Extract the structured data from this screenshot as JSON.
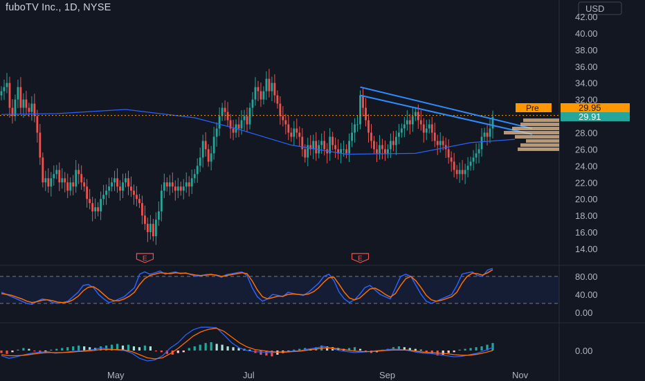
{
  "header": {
    "symbol": "fuboTV Inc.",
    "interval": "1D",
    "exchange": "NYSE",
    "currency": "USD"
  },
  "colors": {
    "background": "#131722",
    "up": "#26a69a",
    "down": "#ef5350",
    "ma": "#2962ff",
    "trendline": "#2f8cff",
    "stoch_k": "#2962ff",
    "stoch_d": "#ff6d00",
    "pre_badge": "#ff9800",
    "last_badge": "#26a69a",
    "volume_profile": "#f2c48d"
  },
  "price_badges": {
    "pre_label": "Pre",
    "pre_value": "29.95",
    "last_value": "29.91"
  },
  "earnings_marker": "E",
  "chart_data": [
    {
      "type": "candlestick",
      "title": "fuboTV Inc., 1D, NYSE",
      "y_ticks": [
        "14.00",
        "16.00",
        "18.00",
        "20.00",
        "22.00",
        "24.00",
        "26.00",
        "28.00",
        "30.00",
        "32.00",
        "34.00",
        "36.00",
        "38.00",
        "40.00",
        "42.00"
      ],
      "x_ticks": [
        "May",
        "Jul",
        "Sep",
        "Nov"
      ],
      "ylim": [
        13,
        43
      ],
      "last_price": 29.91,
      "pre_market_price": 29.95,
      "grid": false,
      "close_series": [
        33,
        33.5,
        34,
        31,
        30,
        32,
        33.5,
        31,
        32,
        31,
        30.5,
        31.5,
        30,
        28,
        25,
        22,
        22.5,
        21.5,
        22.5,
        23,
        23.5,
        22,
        22.5,
        22,
        21,
        22,
        21.5,
        23.5,
        23,
        22,
        21.5,
        20,
        19.5,
        18.5,
        19,
        18.5,
        20,
        20.5,
        21,
        21.5,
        22,
        22.5,
        21.5,
        21,
        22,
        22.5,
        21.5,
        21,
        20.5,
        20,
        19.5,
        18,
        17,
        16,
        17,
        15.5,
        17.5,
        18.5,
        21,
        22,
        21.5,
        22,
        21.5,
        21,
        21.5,
        21,
        21.5,
        22,
        21.5,
        22.5,
        23,
        24,
        25,
        27,
        26,
        24.5,
        25.5,
        27.5,
        28.5,
        30,
        31,
        30.5,
        29.5,
        28.5,
        28,
        29,
        28.5,
        29.5,
        30,
        29,
        31,
        32,
        33.5,
        33,
        32,
        33,
        34.5,
        33,
        34,
        32.5,
        31.5,
        30,
        29.5,
        29,
        28,
        27.5,
        28.5,
        28,
        27.5,
        26,
        25,
        26.5,
        26,
        27,
        25.5,
        26.5,
        27,
        26,
        25.5,
        27.5,
        26.5,
        26,
        25.5,
        26,
        26,
        25.5,
        27,
        28,
        29,
        29,
        32.5,
        31,
        29.5,
        28,
        27,
        26,
        25.5,
        26.5,
        26,
        25.5,
        26,
        27,
        26.5,
        27.5,
        28,
        28.5,
        29,
        29.5,
        29,
        30,
        30.5,
        29.5,
        29,
        28,
        28.5,
        29,
        28,
        27,
        26.5,
        27,
        26.5,
        26,
        25,
        24.5,
        23.5,
        23,
        23.5,
        23,
        23.5,
        24,
        24.5,
        25,
        25.5,
        26,
        27.5,
        28,
        27.5,
        28.5,
        29.91
      ],
      "moving_average": [
        {
          "day": 0,
          "value": 30.2
        },
        {
          "day": 20,
          "value": 30.3
        },
        {
          "day": 45,
          "value": 30.8
        },
        {
          "day": 70,
          "value": 29.8
        },
        {
          "day": 85,
          "value": 28.5
        },
        {
          "day": 105,
          "value": 26.5
        },
        {
          "day": 125,
          "value": 25.4
        },
        {
          "day": 150,
          "value": 25.5
        },
        {
          "day": 170,
          "value": 26.8
        },
        {
          "day": 186,
          "value": 27.2
        }
      ],
      "trendlines": [
        {
          "from": {
            "day": 130,
            "value": 33.5
          },
          "to": {
            "day": 186,
            "value": 28.5
          }
        },
        {
          "from": {
            "day": 130,
            "value": 32.5
          },
          "to": {
            "day": 186,
            "value": 27.8
          }
        }
      ],
      "volume_profile": [
        {
          "price": 29.5,
          "volume": 0.65
        },
        {
          "price": 29.0,
          "volume": 0.7
        },
        {
          "price": 28.5,
          "volume": 0.85
        },
        {
          "price": 28.0,
          "volume": 1.0
        },
        {
          "price": 27.5,
          "volume": 0.8
        },
        {
          "price": 27.0,
          "volume": 0.6
        },
        {
          "price": 26.5,
          "volume": 0.7
        },
        {
          "price": 26.0,
          "volume": 0.75
        }
      ],
      "earnings_days": [
        52,
        130
      ]
    },
    {
      "type": "line",
      "indicator": "stochastic",
      "y_ticks": [
        "0.00",
        "40.00",
        "80.00"
      ],
      "bands": [
        20,
        80
      ],
      "series": [
        {
          "values": [
            45,
            40,
            35,
            30,
            25,
            20,
            18,
            25,
            30,
            28,
            22,
            20,
            22,
            25,
            35,
            45,
            60,
            62,
            55,
            40,
            30,
            22,
            25,
            30,
            35,
            45,
            55,
            85,
            90,
            85,
            88,
            92,
            85,
            88,
            90,
            86,
            88,
            84,
            80,
            82,
            84,
            85,
            82,
            78,
            84,
            86,
            88,
            90,
            82,
            55,
            35,
            25,
            30,
            40,
            38,
            35,
            45,
            42,
            40,
            38,
            45,
            55,
            65,
            80,
            85,
            70,
            45,
            30,
            22,
            28,
            40,
            55,
            60,
            50,
            40,
            35,
            30,
            55,
            80,
            85,
            80,
            60,
            40,
            25,
            20,
            25,
            30,
            35,
            40,
            60,
            85,
            88,
            90,
            82,
            80,
            94,
            98
          ]
        },
        {
          "values": [
            42,
            40,
            38,
            34,
            30,
            25,
            22,
            24,
            27,
            28,
            26,
            23,
            22,
            23,
            28,
            36,
            48,
            56,
            57,
            50,
            40,
            30,
            26,
            26,
            30,
            36,
            45,
            62,
            75,
            82,
            85,
            88,
            87,
            86,
            88,
            87,
            87,
            85,
            83,
            82,
            83,
            84,
            83,
            80,
            82,
            84,
            86,
            88,
            86,
            70,
            50,
            35,
            30,
            33,
            36,
            36,
            40,
            41,
            40,
            39,
            41,
            46,
            55,
            67,
            77,
            78,
            62,
            45,
            32,
            28,
            32,
            42,
            52,
            54,
            48,
            40,
            34,
            42,
            60,
            75,
            80,
            70,
            55,
            38,
            28,
            25,
            27,
            31,
            35,
            45,
            65,
            80,
            87,
            86,
            83,
            88,
            95
          ]
        }
      ]
    },
    {
      "type": "bar",
      "indicator": "macd",
      "y_ticks": [
        "0.00"
      ],
      "histogram": [
        -0.3,
        -0.4,
        -0.2,
        0.1,
        0.3,
        0.2,
        -0.1,
        -0.3,
        -0.2,
        0.1,
        0.2,
        0.3,
        0.4,
        0.5,
        0.6,
        0.5,
        0.4,
        0.3,
        0.5,
        0.6,
        0.7,
        0.8,
        0.6,
        0.7,
        0.5,
        0.4,
        0.6,
        0.5,
        -0.1,
        -0.2,
        -0.4,
        -0.5,
        -0.3,
        -0.2,
        0.3,
        0.5,
        0.7,
        0.9,
        1.0,
        0.8,
        0.7,
        0.5,
        0.4,
        0.3,
        0.2,
        0.1,
        -0.3,
        -0.5,
        -0.6,
        -0.7,
        -0.5,
        -0.3,
        -0.2,
        0.1,
        0.2,
        0.3,
        0.2,
        0.4,
        0.6,
        0.5,
        0.4,
        0.3,
        0.2,
        0.3,
        0.4,
        0.2,
        -0.1,
        -0.3,
        -0.2,
        0.1,
        0.2,
        0.4,
        0.5,
        0.4,
        0.3,
        0.2,
        0.1,
        -0.2,
        -0.4,
        -0.6,
        -0.5,
        -0.3,
        -0.2,
        0.1,
        0.2,
        0.3,
        0.4,
        0.5,
        0.7,
        0.9
      ],
      "series": [
        {
          "values": [
            -1,
            -1.5,
            -1.2,
            -0.8,
            -0.5,
            -0.3,
            -0.2,
            -0.5,
            -0.4,
            -0.2,
            -0.1,
            0.0,
            0.2,
            0.5,
            0.3,
            0.1,
            0.0,
            -0.5,
            -1.5,
            -2,
            -1.8,
            -1,
            0.5,
            1.5,
            3,
            4,
            4.5,
            4.5,
            4.4,
            3,
            1.5,
            0.5,
            0.0,
            -0.2,
            -0.3,
            -0.4,
            -0.3,
            -0.2,
            -0.1,
            0.0,
            0.3,
            0.5,
            0.8,
            0.4,
            0.0,
            -0.2,
            -0.4,
            -0.3,
            -0.2,
            0.0,
            0.1,
            0.3,
            0.2,
            0.0,
            -0.3,
            -0.5,
            -0.6,
            -0.8,
            -1.0,
            -1.2,
            -1.1,
            -0.8,
            -0.5,
            0.0,
            0.6
          ]
        },
        {
          "values": [
            -0.8,
            -1.0,
            -1.0,
            -0.9,
            -0.7,
            -0.5,
            -0.4,
            -0.4,
            -0.4,
            -0.3,
            -0.2,
            -0.1,
            0.0,
            0.2,
            0.2,
            0.2,
            0.1,
            -0.2,
            -0.8,
            -1.4,
            -1.6,
            -1.4,
            -0.6,
            0.4,
            1.6,
            2.8,
            3.6,
            4.1,
            4.3,
            3.7,
            2.6,
            1.5,
            0.7,
            0.2,
            0.0,
            -0.2,
            -0.3,
            -0.3,
            -0.2,
            -0.1,
            0.1,
            0.3,
            0.5,
            0.5,
            0.3,
            0.1,
            -0.1,
            -0.2,
            -0.2,
            -0.1,
            0.0,
            0.1,
            0.1,
            0.1,
            -0.1,
            -0.3,
            -0.4,
            -0.5,
            -0.6,
            -0.8,
            -0.9,
            -0.9,
            -0.7,
            -0.4,
            0.0
          ]
        }
      ]
    }
  ]
}
